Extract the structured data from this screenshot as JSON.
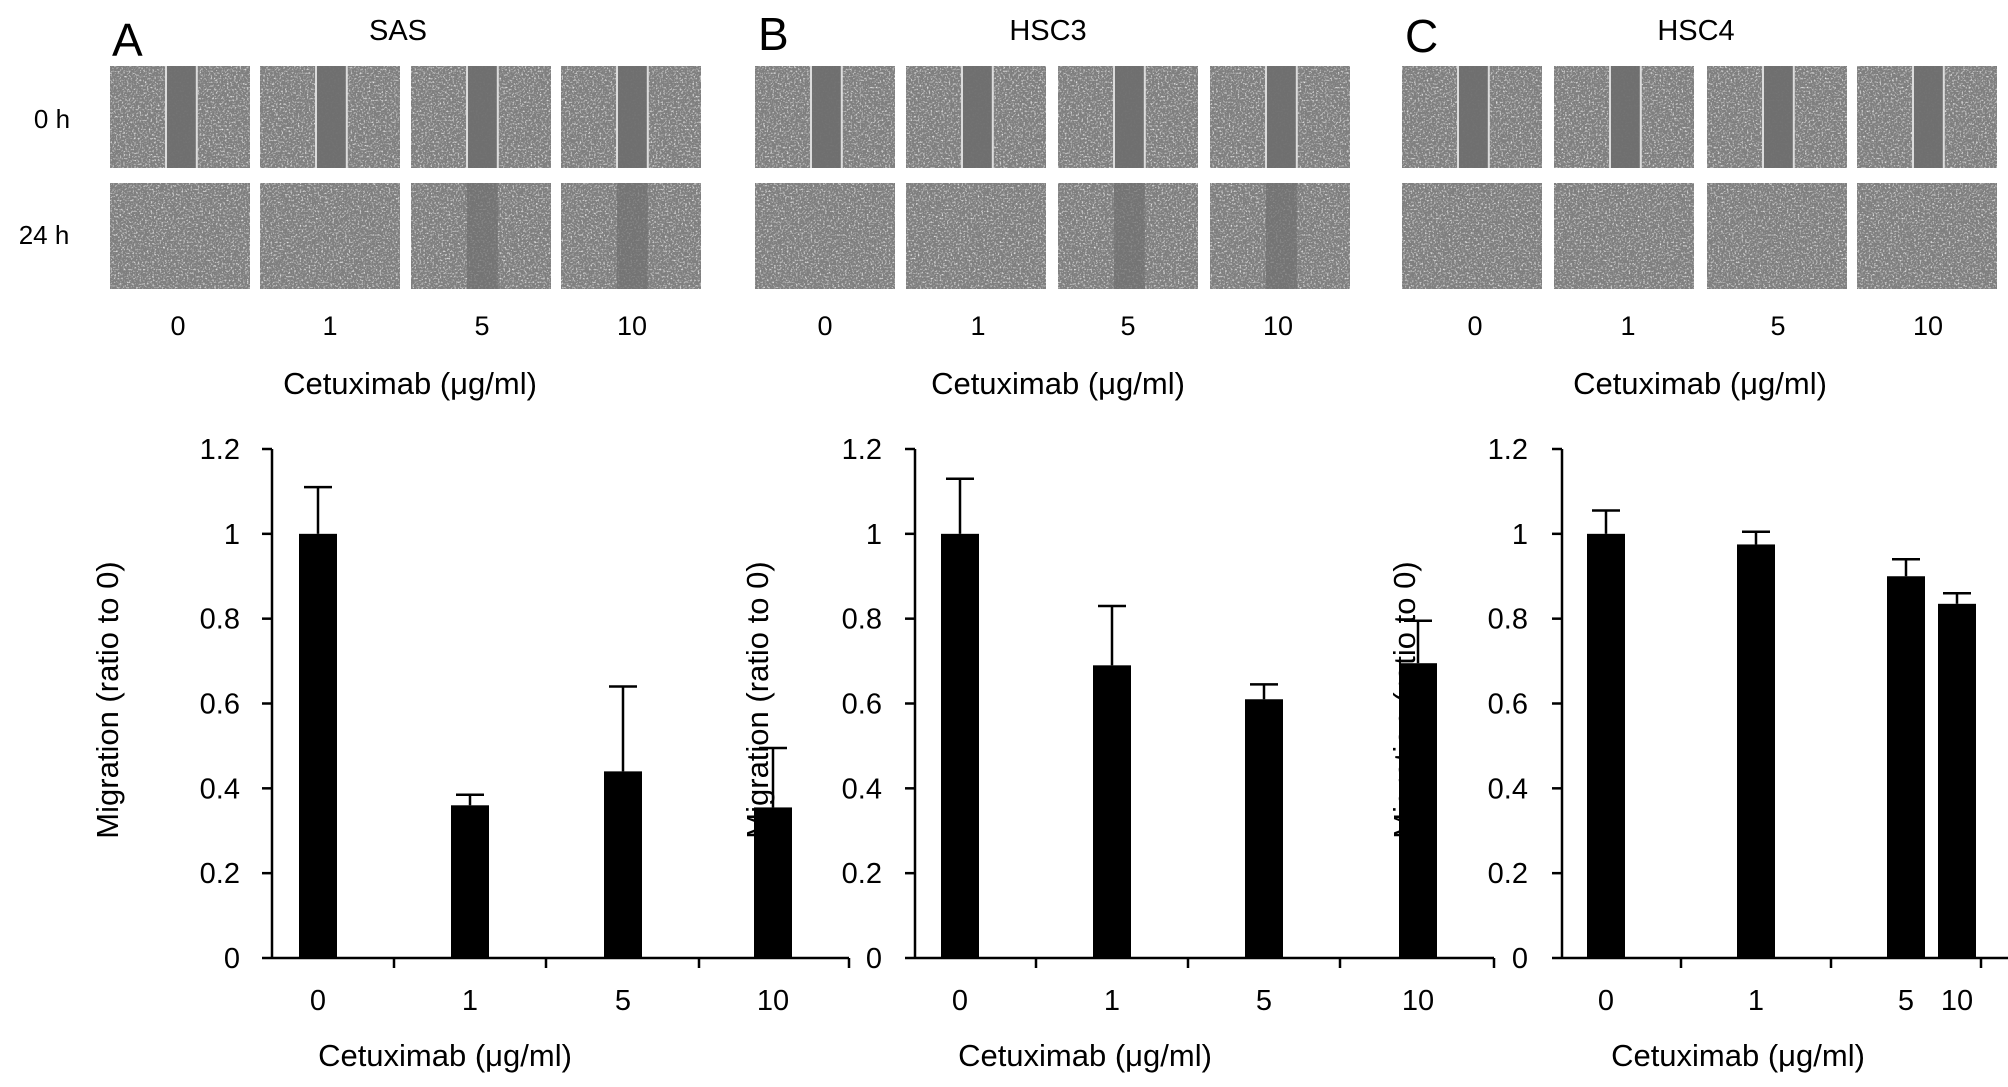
{
  "figure": {
    "time_labels": [
      "0 h",
      "24 h"
    ],
    "panels": [
      {
        "letter": "A",
        "cell_line": "SAS",
        "doses": [
          "0",
          "1",
          "5",
          "10"
        ],
        "xlabel": "Cetuximab (μg/ml)"
      },
      {
        "letter": "B",
        "cell_line": "HSC3",
        "doses": [
          "0",
          "1",
          "5",
          "10"
        ],
        "xlabel": "Cetuximab (μg/ml)"
      },
      {
        "letter": "C",
        "cell_line": "HSC4",
        "doses": [
          "0",
          "1",
          "5",
          "10"
        ],
        "xlabel": "Cetuximab (μg/ml)"
      }
    ],
    "micrograph_wound_open_0h": [
      [
        true,
        true,
        true,
        true
      ],
      [
        true,
        true,
        true,
        true
      ],
      [
        true,
        true,
        true,
        true
      ]
    ],
    "micrograph_wound_open_24h": [
      [
        false,
        false,
        true,
        true
      ],
      [
        false,
        false,
        true,
        true
      ],
      [
        false,
        false,
        false,
        false
      ]
    ]
  },
  "chart_data": [
    {
      "type": "bar",
      "panel": "A",
      "categories": [
        "0",
        "1",
        "5",
        "10"
      ],
      "values": [
        1.0,
        0.36,
        0.44,
        0.355
      ],
      "error_upper": [
        0.11,
        0.025,
        0.2,
        0.14
      ],
      "xlabel": "Cetuximab (μg/ml)",
      "ylabel": "Migration (ratio to 0)",
      "ylim": [
        0,
        1.2
      ],
      "yticks": [
        "0",
        "0.2",
        "0.4",
        "0.6",
        "0.8",
        "1",
        "1.2"
      ],
      "bar_color": "#000000",
      "grid": false
    },
    {
      "type": "bar",
      "panel": "B",
      "categories": [
        "0",
        "1",
        "5",
        "10"
      ],
      "values": [
        1.0,
        0.69,
        0.61,
        0.695
      ],
      "error_upper": [
        0.13,
        0.14,
        0.035,
        0.1
      ],
      "xlabel": "Cetuximab (μg/ml)",
      "ylabel": "Migration (ratio to 0)",
      "ylim": [
        0,
        1.2
      ],
      "yticks": [
        "0",
        "0.2",
        "0.4",
        "0.6",
        "0.8",
        "1",
        "1.2"
      ],
      "bar_color": "#000000",
      "grid": false
    },
    {
      "type": "bar",
      "panel": "C",
      "categories": [
        "0",
        "1",
        "5",
        "10"
      ],
      "values": [
        1.0,
        0.975,
        0.9,
        0.835
      ],
      "error_upper": [
        0.055,
        0.03,
        0.04,
        0.025
      ],
      "xlabel": "Cetuximab (μg/ml)",
      "ylabel": "Migration (ratio to 0)",
      "ylim": [
        0,
        1.2
      ],
      "yticks": [
        "0",
        "0.2",
        "0.4",
        "0.6",
        "0.8",
        "1",
        "1.2"
      ],
      "bar_color": "#000000",
      "grid": false
    }
  ]
}
